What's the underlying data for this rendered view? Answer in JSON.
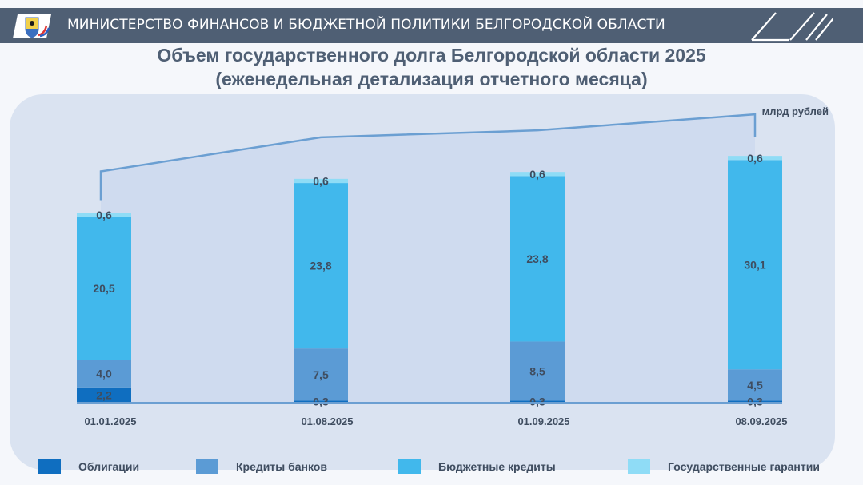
{
  "header": {
    "title": "МИНИСТЕРСТВО ФИНАНСОВ И БЮДЖЕТНОЙ ПОЛИТИКИ БЕЛГОРОДСКОЙ ОБЛАСТИ",
    "logo_icon": "belgorod-coat-of-arms-icon"
  },
  "slide": {
    "title_line1": "Объем государственного долга Белгородской области 2025",
    "title_line2": "(еженедельная детализация отчетного месяца)"
  },
  "colors": {
    "header_bg": "#4f5f74",
    "title": "#4f5f74",
    "obligations": "#0f6ec0",
    "bank_credits": "#5b9bd5",
    "budget_credits": "#41b8ec",
    "guarantees": "#8fdcf6",
    "backdrop": "#cfdbef",
    "total_line": "#6b9fd2"
  },
  "chart_data": {
    "type": "bar",
    "stacked": true,
    "unit_label": "млрд рублей",
    "categories": [
      "01.01.2025",
      "01.08.2025",
      "01.09.2025",
      "08.09.2025"
    ],
    "series": [
      {
        "name": "Облигации",
        "values": [
          2.2,
          0.3,
          0.3,
          0.3
        ],
        "labels": [
          "2,2",
          "0,3",
          "0,3",
          "0,3"
        ]
      },
      {
        "name": "Кредиты банков",
        "values": [
          4.0,
          7.5,
          8.5,
          4.5
        ],
        "labels": [
          "4,0",
          "7,5",
          "8,5",
          "4,5"
        ]
      },
      {
        "name": "Бюджетные кредиты",
        "values": [
          20.5,
          23.8,
          23.8,
          30.1
        ],
        "labels": [
          "20,5",
          "23,8",
          "23,8",
          "30,1"
        ]
      },
      {
        "name": "Государственные гарантии",
        "values": [
          0.6,
          0.6,
          0.6,
          0.6
        ],
        "labels": [
          "0,6",
          "0,6",
          "0,6",
          "0,6"
        ]
      }
    ],
    "totals_line": true,
    "legend_position": "bottom",
    "grid": false
  }
}
